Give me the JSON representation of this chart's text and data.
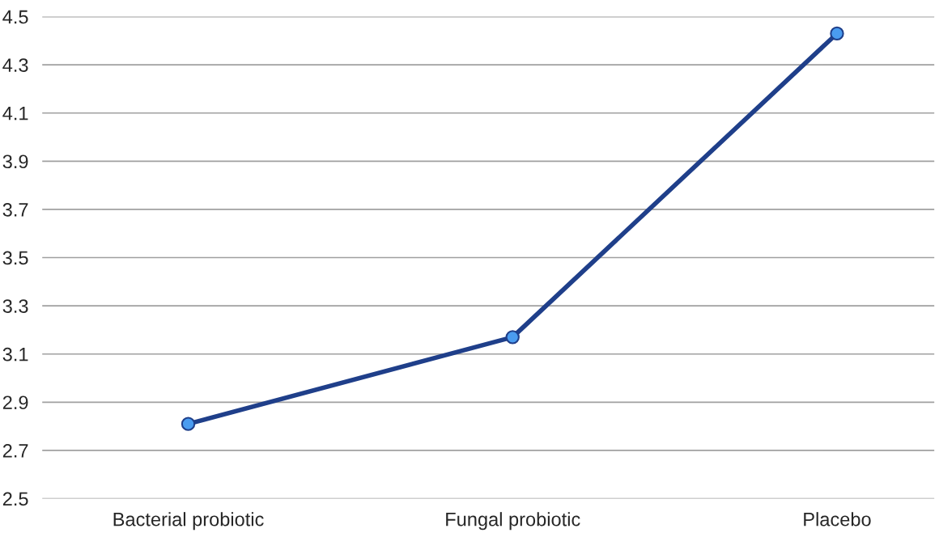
{
  "chart_data": {
    "type": "line",
    "categories": [
      "Bacterial probiotic",
      "Fungal probiotic",
      "Placebo"
    ],
    "series": [
      {
        "color": "#1f3f8a",
        "values": [
          2.81,
          3.17,
          4.43
        ]
      }
    ],
    "ylim": [
      2.5,
      4.5
    ],
    "yticks": [
      2.5,
      2.7,
      2.9,
      3.1,
      3.3,
      3.5,
      3.7,
      3.9,
      4.1,
      4.3,
      4.5
    ],
    "grid": "y",
    "marker": "circle",
    "line_style": "solid"
  }
}
